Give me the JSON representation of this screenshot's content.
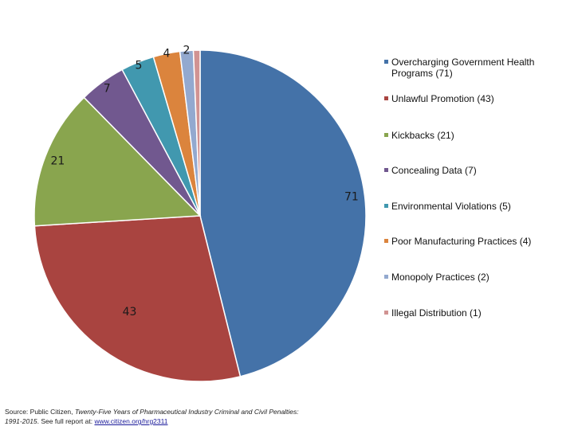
{
  "chart_data": {
    "type": "pie",
    "title": "",
    "categories": [
      "Overcharging Government Health Programs",
      "Unlawful Promotion",
      "Kickbacks",
      "Concealing Data",
      "Environmental Violations",
      "Poor Manufacturing Practices",
      "Monopoly Practices",
      "Illegal Distribution"
    ],
    "values": [
      71,
      43,
      21,
      7,
      5,
      4,
      2,
      1
    ],
    "data_labels": [
      "71",
      "43",
      "21",
      "7",
      "5",
      "4",
      "2",
      ""
    ],
    "legend_labels": [
      "Overcharging Government Health Programs (71)",
      "Unlawful Promotion (43)",
      "Kickbacks (21)",
      "Concealing Data (7)",
      "Environmental Violations (5)",
      "Poor Manufacturing Practices (4)",
      "Monopoly Practices (2)",
      "Illegal Distribution (1)"
    ],
    "colors": [
      "#4472a8",
      "#a94440",
      "#89a54e",
      "#71588f",
      "#4198af",
      "#db843d",
      "#93a9cf",
      "#d19392"
    ],
    "legend_placement": "right",
    "start": "12 o'clock, clockwise"
  },
  "source": {
    "prefix": "Source: Public Citizen, ",
    "italic": "Twenty-Five Years of Pharmaceutical Industry Criminal and Civil Penalties: 1991-2015",
    "suffix": ". See full report at: ",
    "link": "www.citizen.org/hrg2311"
  }
}
